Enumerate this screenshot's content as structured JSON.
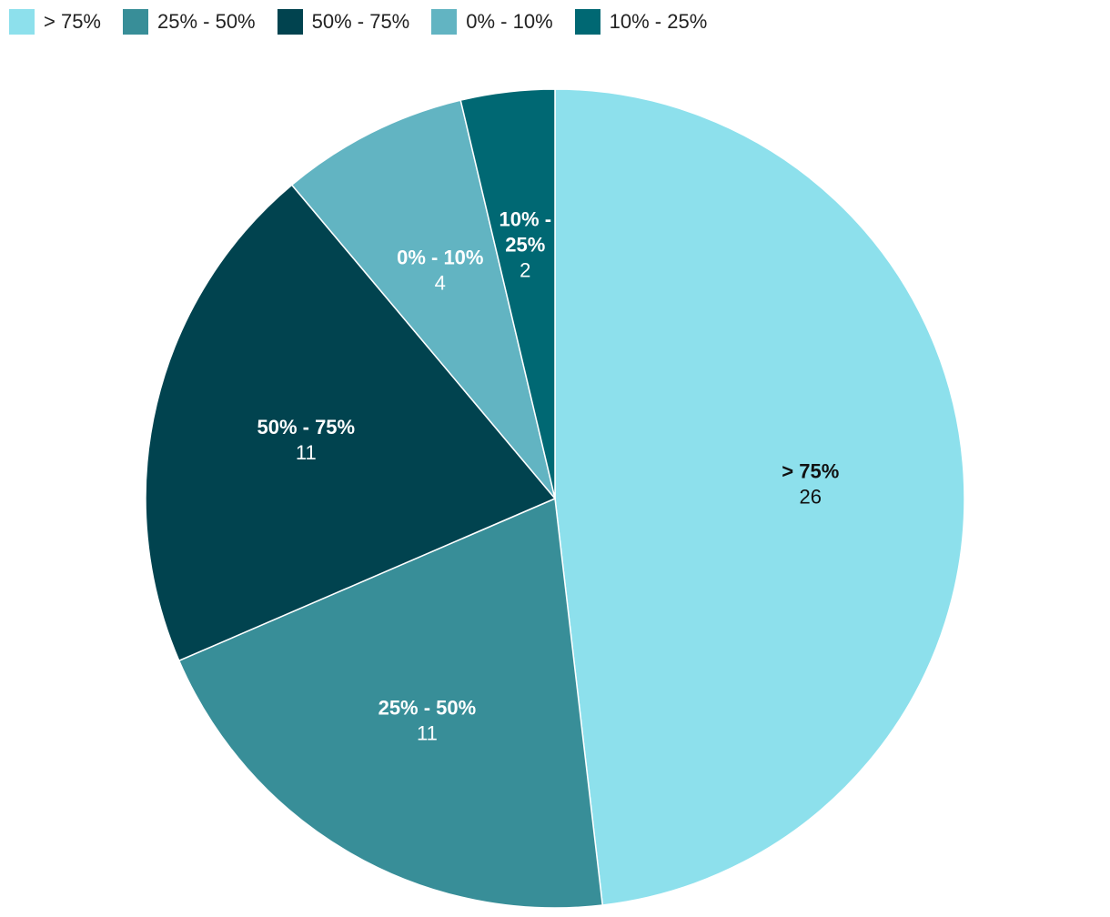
{
  "chart_data": {
    "type": "pie",
    "legend_placement": "top-left",
    "slices": [
      {
        "label": "> 75%",
        "label_lines": [
          "> 75%"
        ],
        "value": 26,
        "color": "#8DE0EC",
        "text_color": "#111111"
      },
      {
        "label": "25% - 50%",
        "label_lines": [
          "25% - 50%"
        ],
        "value": 11,
        "color": "#388E98",
        "text_color": "#ffffff"
      },
      {
        "label": "50% - 75%",
        "label_lines": [
          "50% - 75%"
        ],
        "value": 11,
        "color": "#01434F",
        "text_color": "#ffffff"
      },
      {
        "label": "0% - 10%",
        "label_lines": [
          "0% - 10%"
        ],
        "value": 4,
        "color": "#62B4C2",
        "text_color": "#ffffff"
      },
      {
        "label": "10% - 25%",
        "label_lines": [
          "10% -",
          "25%"
        ],
        "value": 2,
        "color": "#006873",
        "text_color": "#ffffff"
      }
    ]
  }
}
